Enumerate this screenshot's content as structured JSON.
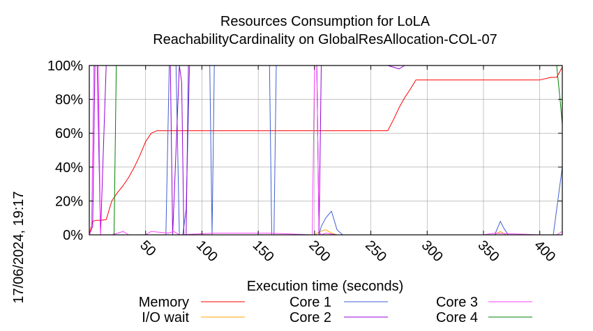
{
  "chart_data": {
    "type": "line",
    "title": "Resources Consumption for LoLA",
    "subtitle": "ReachabilityCardinality on GlobalResAllocation-COL-07",
    "xlabel": "Execution time (seconds)",
    "ylabel": "",
    "xlim": [
      0,
      420
    ],
    "ylim": [
      0,
      100
    ],
    "xticks": [
      50,
      100,
      150,
      200,
      250,
      300,
      350,
      400
    ],
    "yticks": [
      0,
      20,
      40,
      60,
      80,
      100
    ],
    "ytick_labels": [
      "0%",
      "20%",
      "40%",
      "60%",
      "80%",
      "100%"
    ],
    "grid": true,
    "legend_position": "bottom",
    "timestamp": "17/06/2024, 19:17",
    "series": [
      {
        "name": "Memory",
        "color": "#ff0000",
        "x": [
          0,
          3,
          6,
          10,
          15,
          20,
          25,
          30,
          35,
          40,
          45,
          50,
          55,
          60,
          100,
          150,
          200,
          250,
          260,
          265,
          270,
          275,
          280,
          285,
          290,
          300,
          350,
          400,
          410,
          415,
          420
        ],
        "y": [
          0,
          8,
          8.5,
          8.5,
          9,
          20,
          25,
          29,
          34,
          40,
          47,
          55,
          60,
          61.5,
          61.5,
          61.5,
          61.5,
          61.5,
          61.5,
          61.5,
          68,
          75,
          81,
          86,
          91.5,
          91.5,
          91.5,
          91.5,
          93,
          93,
          99
        ]
      },
      {
        "name": "I/O wait",
        "color": "#ffa500",
        "x": [
          0,
          200,
          205,
          210,
          215,
          220,
          360,
          365,
          370,
          420
        ],
        "y": [
          0,
          0,
          2,
          3,
          1,
          0,
          0,
          2,
          0,
          0
        ]
      },
      {
        "name": "Core 1",
        "color": "#4060d0",
        "x": [
          0,
          65,
          68,
          71,
          74,
          77,
          80,
          83,
          86,
          89,
          105,
          107,
          109,
          111,
          113,
          160,
          162,
          164,
          166,
          168,
          200,
          202,
          204,
          206,
          210,
          215,
          220,
          225,
          230,
          240,
          360,
          365,
          368,
          372,
          380,
          412,
          416,
          420
        ],
        "y": [
          0,
          0,
          0,
          100,
          100,
          100,
          0,
          0,
          15,
          100,
          100,
          100,
          0,
          100,
          100,
          100,
          0,
          0,
          100,
          100,
          100,
          100,
          0,
          5,
          10,
          14,
          3,
          0,
          0,
          0,
          0,
          8,
          4,
          0,
          0,
          0,
          20,
          40
        ]
      },
      {
        "name": "Core 2",
        "color": "#9400d3",
        "x": [
          0,
          3,
          5,
          7,
          10,
          15,
          20,
          22,
          25,
          30,
          35,
          40,
          60,
          70,
          72,
          74,
          80,
          82,
          84,
          86,
          88,
          105,
          200,
          202,
          204,
          206,
          208,
          265,
          270,
          275,
          280,
          420
        ],
        "y": [
          0,
          5,
          100,
          100,
          0,
          100,
          100,
          100,
          100,
          100,
          100,
          100,
          100,
          100,
          100,
          0,
          100,
          90,
          0,
          0,
          100,
          100,
          100,
          100,
          0,
          100,
          100,
          100,
          99,
          98,
          100,
          100
        ]
      },
      {
        "name": "Core 3",
        "color": "#ff40ff",
        "x": [
          0,
          2,
          4,
          6,
          8,
          10,
          15,
          20,
          25,
          30,
          35,
          50,
          55,
          70,
          75,
          80,
          110,
          160,
          198,
          200,
          202,
          204,
          206,
          210,
          220,
          250,
          300,
          350,
          360,
          400,
          410,
          415,
          420
        ],
        "y": [
          0,
          3,
          100,
          100,
          100,
          0,
          0,
          0,
          1,
          2,
          0,
          0,
          2,
          1,
          2,
          0,
          1,
          1,
          0,
          100,
          100,
          2,
          0,
          1,
          0,
          0,
          0,
          0,
          1,
          0,
          0,
          0,
          2
        ]
      },
      {
        "name": "Core 4",
        "color": "#008000",
        "x": [
          0,
          5,
          10,
          15,
          20,
          22,
          24,
          26,
          28,
          30,
          100,
          200,
          300,
          400,
          410,
          415,
          418,
          420
        ],
        "y": [
          0,
          0,
          0,
          0,
          0,
          0,
          100,
          100,
          100,
          100,
          100,
          100,
          100,
          100,
          100,
          100,
          80,
          65
        ]
      }
    ]
  }
}
